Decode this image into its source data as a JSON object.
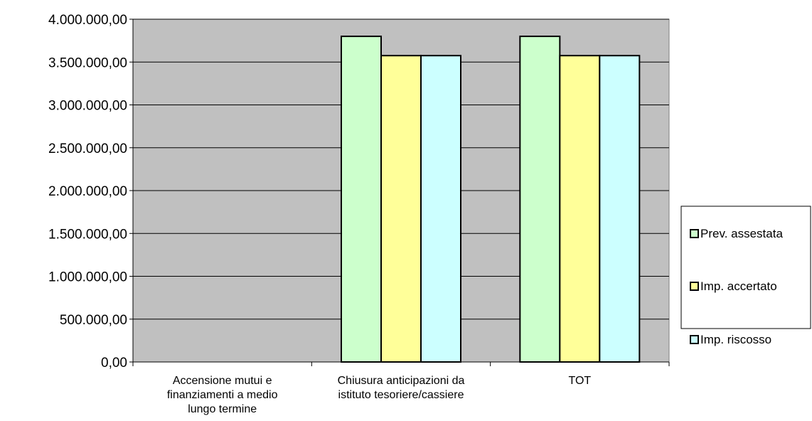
{
  "chart_data": {
    "type": "bar",
    "categories": [
      [
        "Accensione mutui e",
        "finanziamenti a medio",
        "lungo termine"
      ],
      [
        "Chiusura anticipazioni da",
        "istituto tesoriere/cassiere"
      ],
      [
        "TOT"
      ]
    ],
    "series": [
      {
        "name": "Prev. assestata",
        "color": "#ccffcc",
        "values": [
          0,
          3800000,
          3800000
        ]
      },
      {
        "name": "Imp. accertato",
        "color": "#ffff99",
        "values": [
          0,
          3575000,
          3575000
        ]
      },
      {
        "name": "Imp. riscosso",
        "color": "#ccffff",
        "values": [
          0,
          3575000,
          3575000
        ]
      }
    ],
    "ylim": [
      0,
      4000000
    ],
    "y_ticks": [
      0,
      500000,
      1000000,
      1500000,
      2000000,
      2500000,
      3000000,
      3500000,
      4000000
    ],
    "y_tick_labels": [
      "0,00",
      "500.000,00",
      "1.000.000,00",
      "1.500.000,00",
      "2.000.000,00",
      "2.500.000,00",
      "3.000.000,00",
      "3.500.000,00",
      "4.000.000,00"
    ],
    "grid": true,
    "plot_background": "#c0c0c0",
    "legend_position": "right"
  }
}
